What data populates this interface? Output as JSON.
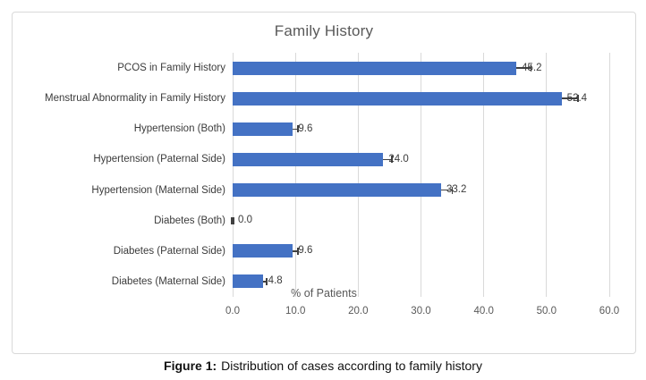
{
  "chart_data": {
    "type": "bar",
    "orientation": "horizontal",
    "title": "Family History",
    "xlabel": "% of Patients",
    "ylabel": "",
    "xlim": [
      0,
      60
    ],
    "xticks": [
      0,
      10,
      20,
      30,
      40,
      50,
      60
    ],
    "xtick_labels": [
      "0.0",
      "10.0",
      "20.0",
      "30.0",
      "40.0",
      "50.0",
      "60.0"
    ],
    "grid": true,
    "legend": false,
    "bar_color": "#4472c4",
    "error_bar_color": "#404040",
    "gridline_color": "#d9d9d9",
    "categories": [
      "PCOS in Family History",
      "Menstrual Abnormality in Family History",
      "Hypertension (Both)",
      "Hypertension (Paternal Side)",
      "Hypertension (Maternal Side)",
      "Diabetes (Both)",
      "Diabetes (Paternal Side)",
      "Diabetes (Maternal Side)"
    ],
    "values": [
      45.2,
      52.4,
      9.6,
      24.0,
      33.2,
      0.0,
      9.6,
      4.8
    ],
    "value_labels": [
      "45.2",
      "52.4",
      "9.6",
      "24.0",
      "33.2",
      "0.0",
      "9.6",
      "4.8"
    ],
    "errors": [
      2.3,
      2.6,
      0.8,
      1.4,
      1.8,
      0.15,
      0.8,
      0.6
    ]
  },
  "caption": {
    "prefix": "Figure 1:",
    "text": "Distribution of cases according to family history"
  }
}
